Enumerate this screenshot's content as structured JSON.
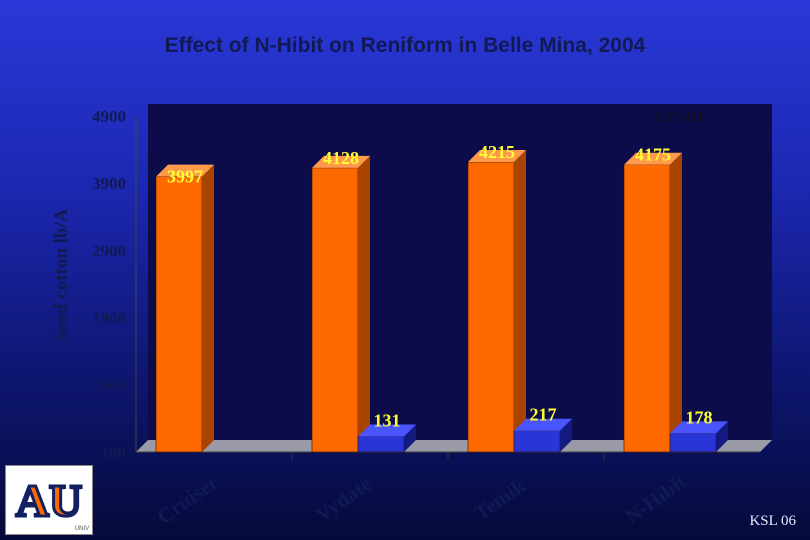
{
  "chart_data": {
    "type": "bar",
    "title": "Effect of N-Hibit on Reniform in Belle Mina, 2004",
    "ylabel": "Seed cotton lb/A",
    "xlabel": "",
    "categories": [
      "Cruiser",
      "Vydate",
      "Temik",
      "N-Hibit"
    ],
    "series": [
      {
        "values": [
          3997,
          4128,
          4215,
          4175
        ]
      },
      {
        "values": [
          null,
          131,
          217,
          178
        ]
      }
    ],
    "ylim": [
      -100,
      4900
    ],
    "yticks": [
      "4900",
      "3900",
      "2900",
      "1900",
      "900",
      "-100"
    ],
    "annotation": "LSD 451",
    "grid": false,
    "colors": {
      "series1": "#ff6a00",
      "series2": "#2a35d8",
      "labels": "#ffff33",
      "plot_bg": "#0c0c4a"
    }
  },
  "footer": "KSL 06",
  "logo": {
    "text": "AU",
    "small": "UNIV"
  }
}
